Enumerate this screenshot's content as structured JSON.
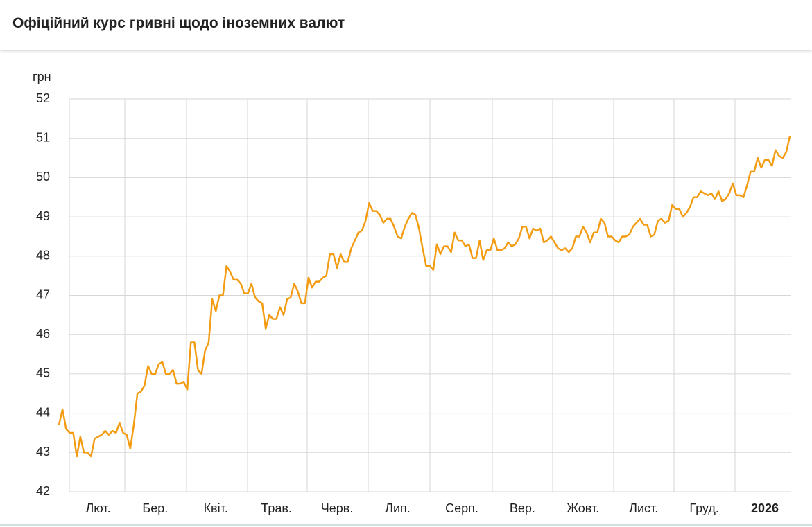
{
  "title": "Офіційний курс гривні щодо іноземних валют",
  "chart_data": {
    "type": "line",
    "y_label": "грн",
    "color": "#f39c12",
    "grid": true,
    "ylim": [
      42,
      52
    ],
    "yticks": [
      42,
      43,
      44,
      45,
      46,
      47,
      48,
      49,
      50,
      51,
      52
    ],
    "categories": [
      null,
      null,
      null,
      null,
      null,
      null,
      null,
      null,
      null,
      null,
      null,
      "Лют.",
      null,
      null,
      null,
      null,
      null,
      null,
      null,
      null,
      null,
      null,
      null,
      null,
      null,
      null,
      null,
      "Бер.",
      null,
      null,
      null,
      null,
      null,
      null,
      null,
      null,
      null,
      null,
      null,
      null,
      null,
      null,
      null,
      null,
      "Квіт.",
      null,
      null,
      null,
      null,
      null,
      null,
      null,
      null,
      null,
      null,
      null,
      null,
      null,
      null,
      null,
      null,
      "Трав.",
      null,
      null,
      null,
      null,
      null,
      null,
      null,
      null,
      null,
      null,
      null,
      null,
      null,
      null,
      null,
      null,
      "Черв.",
      null,
      null,
      null,
      null,
      null,
      null,
      null,
      null,
      null,
      null,
      null,
      null,
      null,
      null,
      null,
      null,
      "Лип.",
      null,
      null,
      null,
      null,
      null,
      null,
      null,
      null,
      null,
      null,
      null,
      null,
      null,
      null,
      null,
      null,
      null,
      "Серп.",
      null,
      null,
      null,
      null,
      null,
      null,
      null,
      null,
      null,
      null,
      null,
      null,
      null,
      null,
      null,
      null,
      "Вер.",
      null,
      null,
      null,
      null,
      null,
      null,
      null,
      null,
      null,
      null,
      null,
      null,
      null,
      null,
      null,
      null,
      "Жовт.",
      null,
      null,
      null,
      null,
      null,
      null,
      null,
      null,
      null,
      null,
      null,
      null,
      null,
      null,
      null,
      null,
      "Лист.",
      null,
      null,
      null,
      null,
      null,
      null,
      null,
      null,
      null,
      null,
      null,
      null,
      null,
      null,
      null,
      null,
      "Груд.",
      null,
      null,
      null,
      null,
      null,
      null,
      null,
      null,
      null,
      null,
      null,
      null,
      null,
      null,
      null,
      null,
      "2026",
      null,
      null,
      null,
      null,
      null,
      null,
      null
    ],
    "values": [
      43.7,
      44.1,
      43.6,
      43.5,
      43.5,
      42.9,
      43.4,
      43.0,
      43.0,
      42.9,
      43.35,
      43.4,
      43.45,
      43.55,
      43.45,
      43.55,
      43.5,
      43.75,
      43.5,
      43.45,
      43.1,
      43.7,
      44.5,
      44.55,
      44.7,
      45.2,
      45.0,
      45.0,
      45.25,
      45.3,
      45.0,
      45.0,
      45.1,
      44.75,
      44.75,
      44.8,
      44.6,
      45.8,
      45.8,
      45.1,
      45.0,
      45.6,
      45.8,
      46.9,
      46.6,
      47.0,
      47.0,
      47.75,
      47.6,
      47.4,
      47.4,
      47.3,
      47.05,
      47.05,
      47.3,
      46.95,
      46.85,
      46.8,
      46.15,
      46.5,
      46.4,
      46.4,
      46.7,
      46.5,
      46.9,
      46.95,
      47.3,
      47.1,
      46.8,
      46.8,
      47.45,
      47.2,
      47.35,
      47.35,
      47.45,
      47.5,
      48.05,
      48.05,
      47.7,
      48.05,
      47.85,
      47.85,
      48.2,
      48.4,
      48.6,
      48.65,
      48.9,
      49.35,
      49.15,
      49.15,
      49.05,
      48.85,
      48.95,
      48.95,
      48.75,
      48.5,
      48.45,
      48.75,
      48.95,
      49.1,
      49.05,
      48.7,
      48.2,
      47.75,
      47.75,
      47.65,
      48.3,
      48.05,
      48.25,
      48.25,
      48.1,
      48.6,
      48.4,
      48.4,
      48.25,
      48.3,
      47.95,
      47.95,
      48.4,
      47.9,
      48.15,
      48.15,
      48.45,
      48.15,
      48.15,
      48.2,
      48.35,
      48.25,
      48.3,
      48.45,
      48.75,
      48.75,
      48.45,
      48.7,
      48.65,
      48.7,
      48.35,
      48.4,
      48.5,
      48.35,
      48.2,
      48.15,
      48.2,
      48.1,
      48.2,
      48.5,
      48.5,
      48.75,
      48.6,
      48.35,
      48.6,
      48.6,
      48.95,
      48.85,
      48.5,
      48.5,
      48.4,
      48.35,
      48.5,
      48.5,
      48.55,
      48.75,
      48.85,
      48.95,
      48.8,
      48.8,
      48.5,
      48.55,
      48.9,
      48.95,
      48.85,
      48.9,
      49.3,
      49.2,
      49.2,
      49.0,
      49.1,
      49.25,
      49.5,
      49.5,
      49.65,
      49.6,
      49.55,
      49.6,
      49.45,
      49.65,
      49.4,
      49.45,
      49.6,
      49.85,
      49.55,
      49.55,
      49.5,
      49.8,
      50.15,
      50.15,
      50.5,
      50.25,
      50.45,
      50.45,
      50.3,
      50.7,
      50.55,
      50.5,
      50.65,
      51.05
    ]
  }
}
